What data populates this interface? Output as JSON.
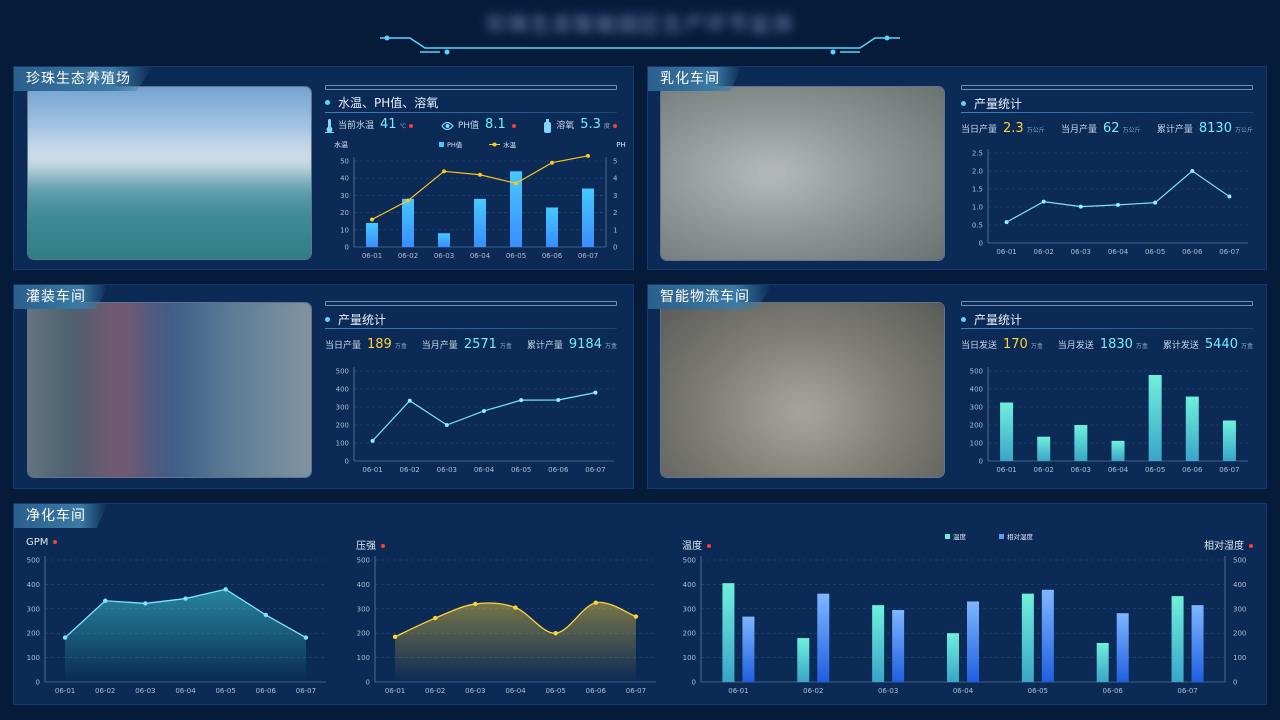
{
  "header": {
    "title": "珍珠生态智能园区生产环节监测"
  },
  "colors": {
    "accent": "#58d6ff",
    "yellow": "#ffd23a",
    "bar": "#4fb4ff",
    "alert": "#ff3b3b"
  },
  "farm": {
    "tag": "珍珠生态养殖场",
    "section_title": "水温、PH值、溶氧",
    "stats": [
      {
        "icon": "thermometer-icon",
        "label": "当前水温",
        "value": "41",
        "unit": "℃"
      },
      {
        "icon": "ph-icon",
        "label": "PH值",
        "value": "8.1",
        "unit": ""
      },
      {
        "icon": "oxygen-icon",
        "label": "溶氧",
        "value": "5.3",
        "unit": "度"
      }
    ],
    "chart_data": {
      "type": "bar",
      "categories": [
        "06-01",
        "06-02",
        "06-03",
        "06-04",
        "06-05",
        "06-06",
        "06-07"
      ],
      "series": [
        {
          "name": "PH值",
          "kind": "bar",
          "axis": "left",
          "values": [
            14,
            28,
            8,
            28,
            44,
            23,
            34
          ]
        },
        {
          "name": "水温",
          "kind": "line",
          "axis": "right",
          "values": [
            1.6,
            2.7,
            4.4,
            4.2,
            3.7,
            4.9,
            5.3
          ]
        }
      ],
      "ylabel": "水温",
      "y2label": "PH",
      "ylim": [
        0,
        50
      ],
      "yticks": [
        0,
        10,
        20,
        30,
        40,
        50
      ],
      "y2lim": [
        0,
        5
      ],
      "y2ticks": [
        0,
        1,
        2,
        3,
        4,
        5
      ],
      "legend": "top-center"
    }
  },
  "dairy": {
    "tag": "乳化车间",
    "section_title": "产量统计",
    "stats": [
      {
        "label": "当日产量",
        "value": "2.3",
        "unit": "万公斤",
        "color": "yellow"
      },
      {
        "label": "当月产量",
        "value": "62",
        "unit": "万公斤",
        "color": "cyan"
      },
      {
        "label": "累计产量",
        "value": "8130",
        "unit": "万公斤",
        "color": "cyan"
      }
    ],
    "chart_data": {
      "type": "line",
      "categories": [
        "06-01",
        "06-02",
        "06-03",
        "06-04",
        "06-05",
        "06-06",
        "06-07"
      ],
      "values": [
        0.58,
        1.15,
        1.01,
        1.06,
        1.12,
        2.0,
        1.29
      ],
      "ylim": [
        0,
        2.5
      ],
      "yticks": [
        "0",
        "0.5",
        "1.0",
        "1.5",
        "2.0",
        "2.5"
      ]
    }
  },
  "filling": {
    "tag": "灌装车间",
    "section_title": "产量统计",
    "stats": [
      {
        "label": "当日产量",
        "value": "189",
        "unit": "万盒",
        "color": "yellow"
      },
      {
        "label": "当月产量",
        "value": "2571",
        "unit": "万盒",
        "color": "cyan"
      },
      {
        "label": "累计产量",
        "value": "9184",
        "unit": "万盒",
        "color": "cyan"
      }
    ],
    "chart_data": {
      "type": "line",
      "categories": [
        "06-01",
        "06-02",
        "06-03",
        "06-04",
        "06-05",
        "06-06",
        "06-07"
      ],
      "values": [
        112,
        335,
        200,
        278,
        338,
        339,
        380
      ],
      "ylim": [
        0,
        500
      ],
      "yticks": [
        "0",
        "100",
        "200",
        "300",
        "400",
        "500"
      ]
    }
  },
  "logistics": {
    "tag": "智能物流车间",
    "section_title": "产量统计",
    "stats": [
      {
        "label": "当日发送",
        "value": "170",
        "unit": "万盒",
        "color": "yellow"
      },
      {
        "label": "当月发送",
        "value": "1830",
        "unit": "万盒",
        "color": "cyan"
      },
      {
        "label": "累计发送",
        "value": "5440",
        "unit": "万盒",
        "color": "cyan"
      }
    ],
    "chart_data": {
      "type": "bar",
      "categories": [
        "06-01",
        "06-02",
        "06-03",
        "06-04",
        "06-05",
        "06-06",
        "06-07"
      ],
      "values": [
        325,
        135,
        200,
        112,
        478,
        358,
        225
      ],
      "ylim": [
        0,
        500
      ],
      "yticks": [
        "0",
        "100",
        "200",
        "300",
        "400",
        "500"
      ]
    }
  },
  "purify": {
    "tag": "净化车间",
    "gpm": {
      "label": "GPM",
      "chart_data": {
        "type": "area",
        "categories": [
          "06-01",
          "06-02",
          "06-03",
          "06-04",
          "06-05",
          "06-06",
          "06-07"
        ],
        "values": [
          182,
          333,
          322,
          342,
          380,
          275,
          182
        ],
        "ylim": [
          0,
          500
        ],
        "yticks": [
          "0",
          "100",
          "200",
          "300",
          "400",
          "500"
        ]
      }
    },
    "pressure": {
      "label": "压强",
      "chart_data": {
        "type": "area",
        "categories": [
          "06-01",
          "06-02",
          "06-03",
          "06-04",
          "06-05",
          "06-06",
          "06-07"
        ],
        "values": [
          185,
          262,
          320,
          305,
          200,
          325,
          268
        ],
        "ylim": [
          0,
          500
        ],
        "yticks": [
          "0",
          "100",
          "200",
          "300",
          "400",
          "500"
        ]
      }
    },
    "humidity": {
      "label_left": "温度",
      "label_right": "相对湿度",
      "chart_data": {
        "type": "bar",
        "categories": [
          "06-01",
          "06-02",
          "06-03",
          "06-04",
          "06-05",
          "06-06",
          "06-07"
        ],
        "series": [
          {
            "name": "温度",
            "values": [
              405,
              180,
              315,
              200,
              362,
              160,
              352
            ]
          },
          {
            "name": "相对湿度",
            "values": [
              268,
              362,
              295,
              330,
              378,
              282,
              315
            ]
          }
        ],
        "ylim": [
          0,
          500
        ],
        "yticks": [
          "0",
          "100",
          "200",
          "300",
          "400",
          "500"
        ],
        "y2ticks": [
          "0",
          "100",
          "200",
          "300",
          "400",
          "500"
        ],
        "legend": "top-center"
      }
    }
  }
}
